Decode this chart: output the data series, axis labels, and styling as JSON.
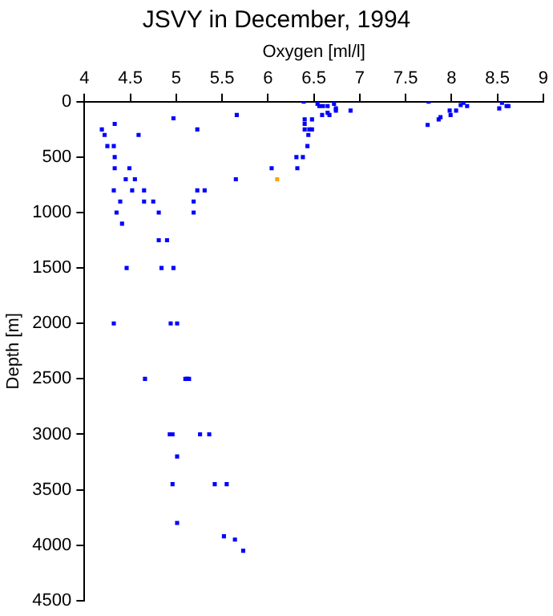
{
  "chart_data": {
    "type": "scatter",
    "title": "JSVY in December, 1994",
    "xlabel": "Oxygen [ml/l]",
    "ylabel": "Depth [m]",
    "xlim": [
      4,
      9
    ],
    "xticks": [
      4,
      4.5,
      5,
      5.5,
      6,
      6.5,
      7,
      7.5,
      8,
      8.5,
      9
    ],
    "ylim": [
      4500,
      0
    ],
    "yticks": [
      0,
      500,
      1000,
      1500,
      2000,
      2500,
      3000,
      3500,
      4000,
      4500
    ],
    "grid": false,
    "legend": false,
    "marker": "square",
    "series": [
      {
        "color": "#0000ff",
        "x": [
          4.19,
          4.22,
          4.25,
          4.33,
          4.32,
          4.33,
          4.33,
          4.32,
          4.35,
          4.39,
          4.41,
          4.45,
          4.49,
          4.52,
          4.55,
          4.59,
          4.65,
          4.65,
          4.75,
          4.81,
          4.81,
          4.9,
          4.97,
          5.19,
          5.19,
          5.23,
          5.23,
          5.31,
          5.66,
          5.65,
          6.04,
          6.32,
          6.31,
          6.38,
          6.39,
          6.4,
          6.4,
          6.4,
          6.43,
          6.44,
          6.45,
          6.48,
          6.48,
          6.54,
          6.56,
          6.6,
          6.59,
          6.65,
          6.65,
          6.67,
          6.72,
          6.74,
          6.74,
          6.9,
          7.75,
          7.74,
          7.86,
          7.88,
          7.98,
          7.99,
          8.05,
          8.1,
          8.13,
          8.17,
          8.52,
          8.55,
          8.6,
          8.62,
          4.46,
          4.84,
          4.97,
          4.32,
          4.94,
          5.01,
          4.66,
          5.12,
          5.1,
          5.14,
          4.93,
          4.96,
          5.26,
          5.36,
          5.01,
          4.96,
          5.42,
          5.55,
          5.01,
          5.52,
          5.64,
          5.73
        ],
        "values": [
          250,
          300,
          400,
          200,
          400,
          500,
          600,
          800,
          1000,
          900,
          1100,
          700,
          600,
          800,
          700,
          300,
          800,
          900,
          900,
          1000,
          1250,
          1250,
          150,
          900,
          1000,
          250,
          800,
          800,
          120,
          700,
          600,
          600,
          500,
          500,
          0,
          160,
          200,
          250,
          400,
          300,
          250,
          160,
          250,
          20,
          40,
          40,
          120,
          40,
          100,
          120,
          20,
          80,
          60,
          80,
          0,
          210,
          160,
          140,
          80,
          120,
          80,
          30,
          10,
          40,
          60,
          10,
          40,
          40,
          1500,
          1500,
          1500,
          2000,
          2000,
          2000,
          2500,
          2500,
          2500,
          2500,
          3000,
          3000,
          3000,
          3000,
          3200,
          3450,
          3450,
          3450,
          3800,
          3920,
          3950,
          4050
        ]
      },
      {
        "color": "#ffa500",
        "x": [
          6.1
        ],
        "values": [
          700
        ]
      }
    ]
  }
}
